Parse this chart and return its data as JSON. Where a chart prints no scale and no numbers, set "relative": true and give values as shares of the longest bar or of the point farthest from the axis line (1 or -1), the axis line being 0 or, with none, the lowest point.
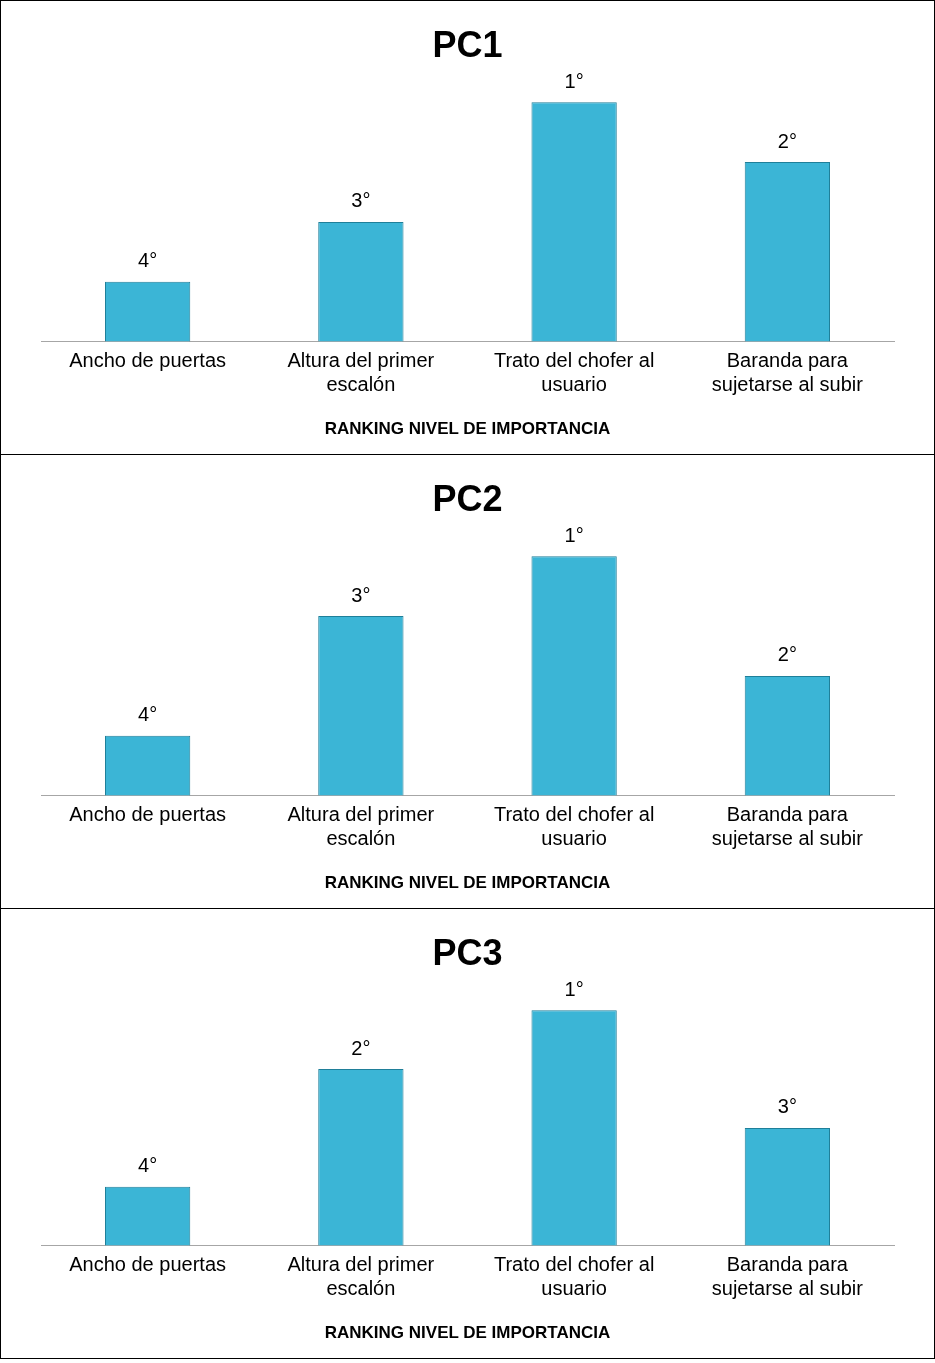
{
  "chart_data": [
    {
      "type": "bar",
      "title": "PC1",
      "xlabel": "RANKING NIVEL DE IMPORTANCIA",
      "categories": [
        "Ancho de puertas",
        "Altura del primer escalón",
        "Trato del chofer al usuario",
        "Baranda para sujetarse al subir"
      ],
      "relative": true,
      "color": "#3bb5d6",
      "values": [
        0.25,
        0.5,
        1,
        0.75
      ],
      "annotations": [
        {
          "text": "4°",
          "x": "Ancho de puertas",
          "y": 0.25
        },
        {
          "text": "3°",
          "x": "Altura del primer escalón",
          "y": 0.5
        },
        {
          "text": "1°",
          "x": "Trato del chofer al usuario",
          "y": 1
        },
        {
          "text": "2°",
          "x": "Baranda para sujetarse al subir",
          "y": 0.75
        }
      ],
      "grid": false,
      "legend": false
    },
    {
      "type": "bar",
      "title": "PC2",
      "xlabel": "RANKING NIVEL DE IMPORTANCIA",
      "categories": [
        "Ancho de puertas",
        "Altura del primer escalón",
        "Trato del chofer al usuario",
        "Baranda para sujetarse al subir"
      ],
      "relative": true,
      "color": "#3bb5d6",
      "values": [
        0.25,
        0.75,
        1,
        0.5
      ],
      "annotations": [
        {
          "text": "4°",
          "x": "Ancho de puertas",
          "y": 0.25
        },
        {
          "text": "3°",
          "x": "Altura del primer escalón",
          "y": 0.75
        },
        {
          "text": "1°",
          "x": "Trato del chofer al usuario",
          "y": 1
        },
        {
          "text": "2°",
          "x": "Baranda para sujetarse al subir",
          "y": 0.5
        }
      ],
      "grid": false,
      "legend": false
    },
    {
      "type": "bar",
      "title": "PC3",
      "xlabel": "RANKING NIVEL DE IMPORTANCIA",
      "categories": [
        "Ancho de puertas",
        "Altura del primer escalón",
        "Trato del chofer al usuario",
        "Baranda para sujetarse al subir"
      ],
      "relative": true,
      "color": "#3bb5d6",
      "values": [
        0.25,
        0.75,
        1,
        0.5
      ],
      "annotations": [
        {
          "text": "4°",
          "x": "Ancho de puertas",
          "y": 0.25
        },
        {
          "text": "2°",
          "x": "Altura del primer escalón",
          "y": 0.75
        },
        {
          "text": "1°",
          "x": "Trato del chofer al usuario",
          "y": 1
        },
        {
          "text": "3°",
          "x": "Baranda para sujetarse al subir",
          "y": 0.5
        }
      ],
      "grid": false,
      "legend": false
    }
  ]
}
